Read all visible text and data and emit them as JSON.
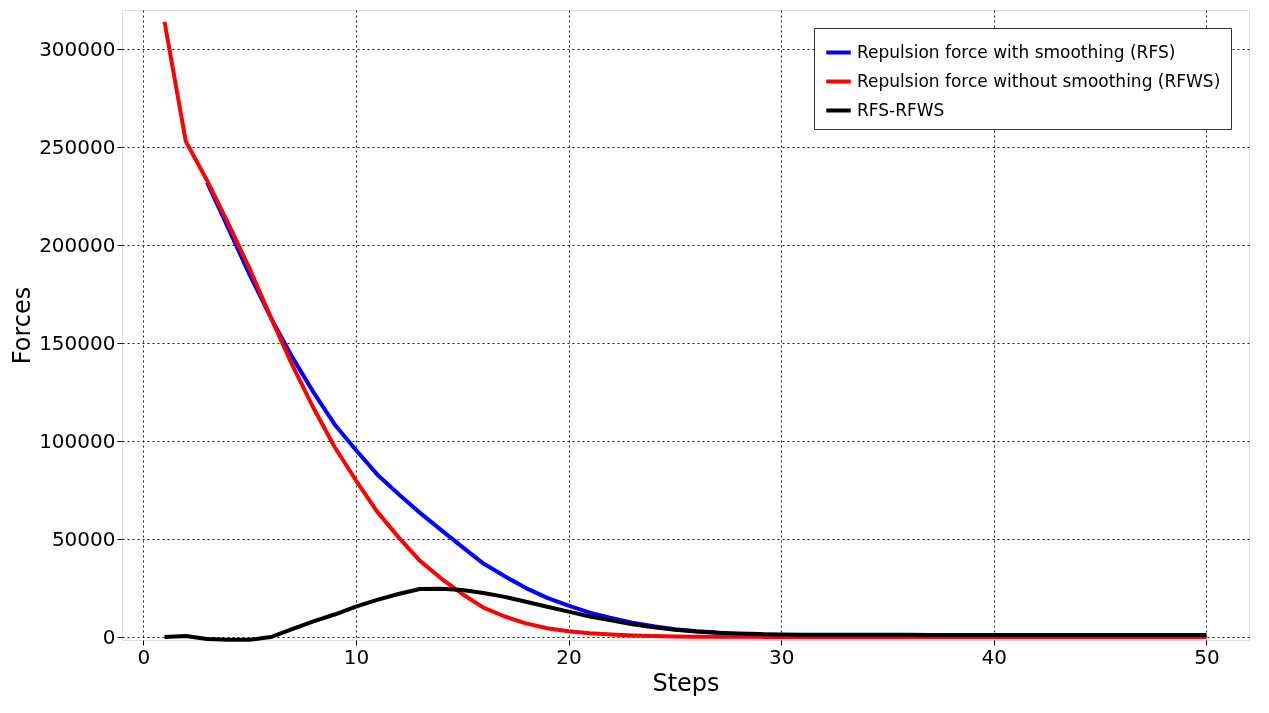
{
  "chart_data": {
    "type": "line",
    "xlabel": "Steps",
    "ylabel": "Forces",
    "x": [
      1,
      2,
      3,
      4,
      5,
      6,
      7,
      8,
      9,
      10,
      11,
      12,
      13,
      14,
      15,
      16,
      17,
      18,
      19,
      20,
      21,
      22,
      23,
      24,
      25,
      26,
      27,
      28,
      29,
      30,
      31,
      32,
      33,
      34,
      35,
      36,
      37,
      38,
      39,
      40,
      41,
      42,
      43,
      44,
      45,
      46,
      47,
      48,
      49,
      50
    ],
    "series": [
      {
        "name": "Repulsion force with smoothing (RFS)",
        "color": "#0000ff",
        "values": [
          null,
          null,
          232000,
          208500,
          185000,
          163000,
          143000,
          125000,
          108500,
          95500,
          83000,
          73000,
          63500,
          54700,
          46000,
          37500,
          31000,
          25000,
          20000,
          16000,
          12500,
          9800,
          7300,
          5500,
          4000,
          3000,
          2300,
          null,
          null,
          null,
          null,
          null,
          null,
          null,
          null,
          null,
          null,
          null,
          null,
          null,
          null,
          null,
          null,
          null,
          null,
          null,
          null,
          null,
          null,
          null
        ]
      },
      {
        "name": "Repulsion force without smoothing (RFWS)",
        "color": "#ff0000",
        "values": [
          314000,
          253000,
          233000,
          211000,
          188000,
          163000,
          139000,
          117000,
          97000,
          80000,
          64000,
          51000,
          39000,
          30000,
          22000,
          15000,
          10500,
          7000,
          4500,
          3000,
          2000,
          1300,
          800,
          500,
          300,
          200,
          200,
          100,
          100,
          0,
          0,
          0,
          0,
          0,
          0,
          0,
          0,
          0,
          0,
          0,
          0,
          0,
          0,
          0,
          0,
          0,
          0,
          0,
          0,
          0
        ]
      },
      {
        "name": "RFS-RFWS",
        "color": "#000000",
        "values": [
          0,
          500,
          -1000,
          -1400,
          -1400,
          0,
          4000,
          8000,
          11500,
          15500,
          19000,
          22000,
          24500,
          24700,
          24000,
          22500,
          20500,
          18000,
          15500,
          13000,
          10500,
          8500,
          6500,
          5000,
          3700,
          2800,
          2200,
          1800,
          1500,
          1300,
          1200,
          1200,
          1200,
          1200,
          1200,
          1200,
          1100,
          1100,
          1100,
          1100,
          1100,
          1100,
          1100,
          1100,
          1100,
          1000,
          1000,
          1000,
          1000,
          1000
        ]
      }
    ],
    "xlim": [
      -1,
      52
    ],
    "ylim": [
      -1500,
      320000
    ],
    "xticks": [
      0,
      10,
      20,
      30,
      40,
      50
    ],
    "yticks": [
      0,
      50000,
      100000,
      150000,
      200000,
      250000,
      300000
    ],
    "grid": true,
    "legend": "top right",
    "line_style": "solid"
  }
}
